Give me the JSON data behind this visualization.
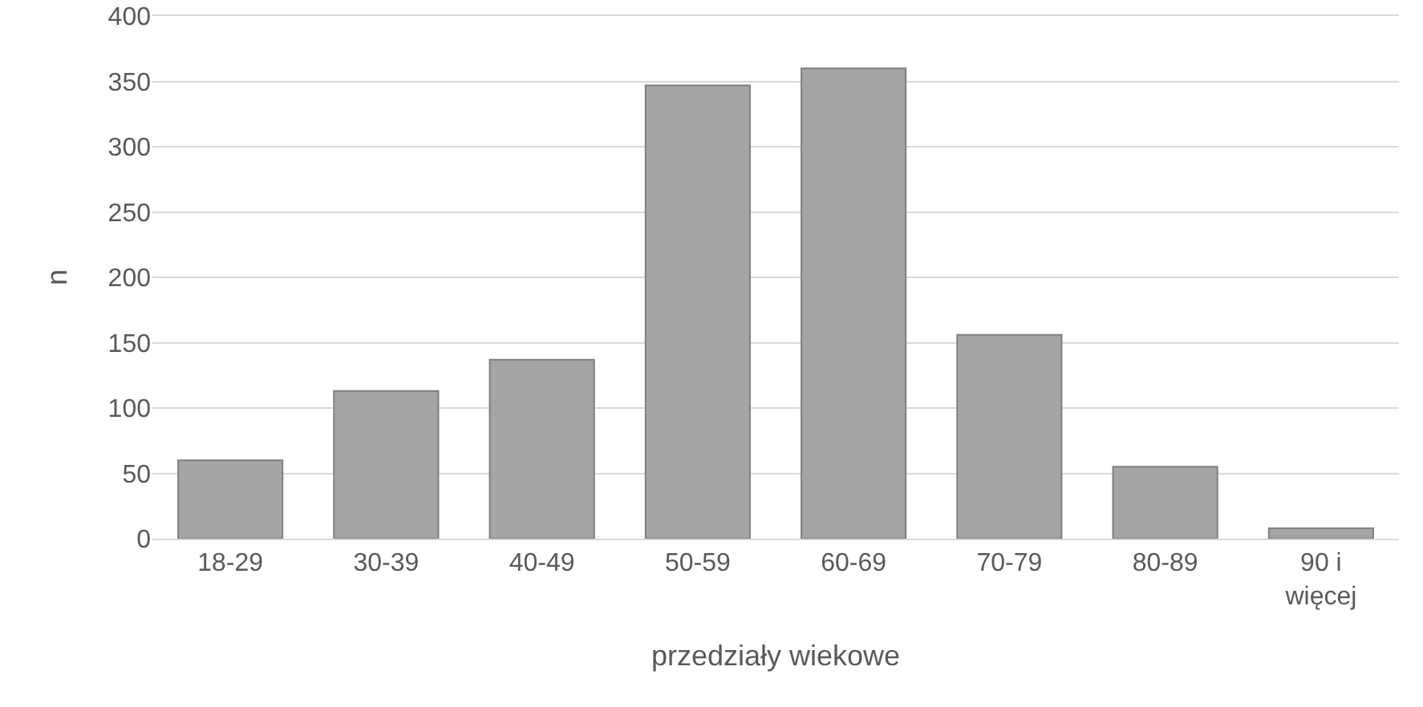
{
  "chart_data": {
    "type": "bar",
    "xlabel": "przedziały wiekowe",
    "ylabel": "n",
    "categories": [
      "18-29",
      "30-39",
      "40-49",
      "50-59",
      "60-69",
      "70-79",
      "80-89",
      "90 i więcej"
    ],
    "values": [
      60,
      113,
      137,
      347,
      360,
      156,
      55,
      8
    ],
    "color": "#a5a5a5",
    "ylim": [
      0,
      400
    ],
    "yticks": [
      0,
      50,
      100,
      150,
      200,
      250,
      300,
      350,
      400
    ],
    "grid": "y"
  }
}
